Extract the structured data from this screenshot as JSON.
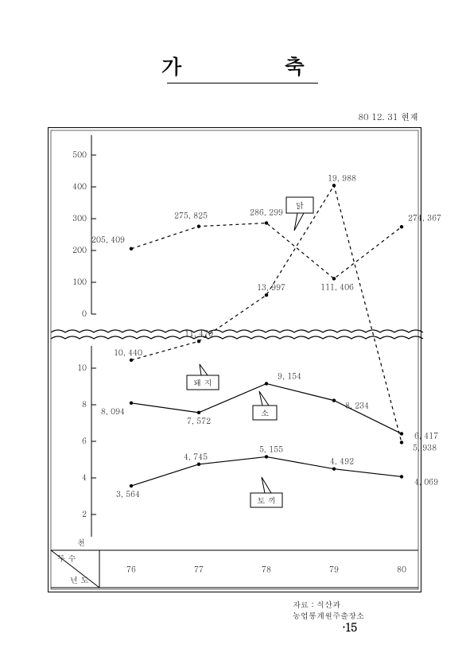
{
  "title": "가        축",
  "date_stamp": "80 12. 31 현재",
  "page_number": "·15",
  "source_line1": "자료 : 식산과",
  "source_line2": "농업통계원주출장소",
  "axis_corner": {
    "top": "두 수",
    "bottom": "년 도",
    "unit_above": "천"
  },
  "x_axis": {
    "categories": [
      "76",
      "77",
      "78",
      "79",
      "80"
    ]
  },
  "top_panel": {
    "ylim": [
      0,
      550
    ],
    "ticks": [
      0,
      100,
      200,
      300,
      400,
      500
    ],
    "series_chicken": {
      "name": "닭",
      "dashed": true,
      "points": [
        {
          "x": "76",
          "y": 205409,
          "label": "205, 409"
        },
        {
          "x": "77",
          "y": 275825,
          "label": "275, 825"
        },
        {
          "x": "78",
          "y": 286299,
          "label": "286, 299"
        },
        {
          "x": "79",
          "y": 111406,
          "label": "111, 406"
        },
        {
          "x": "80",
          "y": 274367,
          "label": "274, 367"
        }
      ]
    }
  },
  "bottom_panel": {
    "ylim": [
      1,
      11
    ],
    "ticks": [
      2,
      4,
      6,
      8,
      10
    ],
    "series_pig": {
      "name": "돼 지",
      "dashed": true,
      "points": [
        {
          "x": "76",
          "y": 10440,
          "label": "10, 440"
        },
        {
          "x": "77",
          "y": 11470,
          "label": "11, 470"
        },
        {
          "x": "78",
          "y": 13997,
          "label": "13, 997"
        },
        {
          "x": "79",
          "y": 19988,
          "label": "19, 988"
        },
        {
          "x": "80",
          "y": 5938,
          "label": "5, 938"
        }
      ]
    },
    "series_cow": {
      "name": "소",
      "dashed": false,
      "points": [
        {
          "x": "76",
          "y": 8094,
          "label": "8, 094"
        },
        {
          "x": "77",
          "y": 7572,
          "label": "7, 572"
        },
        {
          "x": "78",
          "y": 9154,
          "label": "9, 154"
        },
        {
          "x": "79",
          "y": 8234,
          "label": "8, 234"
        },
        {
          "x": "80",
          "y": 6417,
          "label": "6, 417"
        }
      ]
    },
    "series_rabbit": {
      "name": "토 끼",
      "dashed": false,
      "points": [
        {
          "x": "76",
          "y": 3564,
          "label": "3, 564"
        },
        {
          "x": "77",
          "y": 4745,
          "label": "4, 745"
        },
        {
          "x": "78",
          "y": 5155,
          "label": "5, 155"
        },
        {
          "x": "79",
          "y": 4492,
          "label": "4, 492"
        },
        {
          "x": "80",
          "y": 4069,
          "label": "4, 069"
        }
      ]
    }
  },
  "colors": {
    "ink": "#000000",
    "paper": "#ffffff"
  }
}
